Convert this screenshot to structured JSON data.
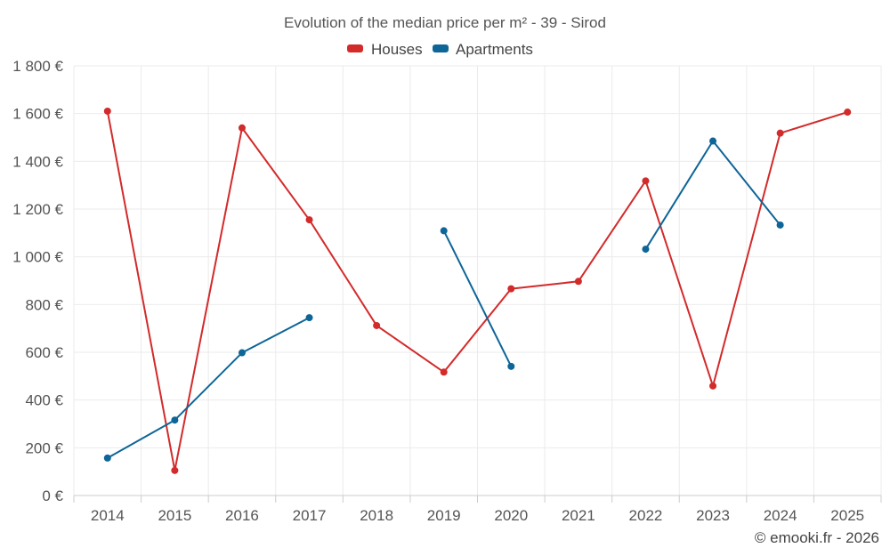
{
  "chart_data": {
    "type": "line",
    "title": "Evolution of the median price per m² - 39 - Sirod",
    "categories": [
      "2014",
      "2015",
      "2016",
      "2017",
      "2018",
      "2019",
      "2020",
      "2021",
      "2022",
      "2023",
      "2024",
      "2025"
    ],
    "series": [
      {
        "name": "Houses",
        "color": "#d32a2a",
        "values": [
          1610,
          105,
          1540,
          1155,
          712,
          517,
          866,
          897,
          1318,
          459,
          1518,
          1606
        ]
      },
      {
        "name": "Apartments",
        "color": "#0e6597",
        "values": [
          157,
          316,
          598,
          745,
          null,
          1109,
          541,
          null,
          1032,
          1485,
          1133,
          null
        ]
      }
    ],
    "ylim": [
      0,
      1800
    ],
    "yticks": [
      0,
      200,
      400,
      600,
      800,
      1000,
      1200,
      1400,
      1600,
      1800
    ],
    "ytick_labels": [
      "0 €",
      "200 €",
      "400 €",
      "600 €",
      "800 €",
      "1 000 €",
      "1 200 €",
      "1 400 €",
      "1 600 €",
      "1 800 €"
    ],
    "xlabel": "",
    "ylabel": "",
    "legend_position": "top-center",
    "grid": true
  },
  "credit": "© emooki.fr - 2026"
}
